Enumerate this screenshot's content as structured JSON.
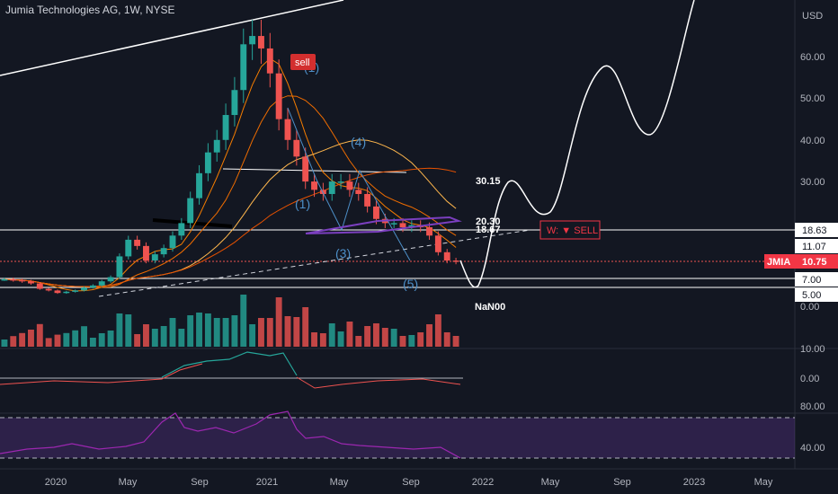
{
  "header": {
    "title": "Jumia Technologies AG, 1W, NYSE"
  },
  "price_axis": {
    "currency": "USD",
    "labels": [
      "60.00",
      "50.00",
      "40.00",
      "30.00",
      "0.00"
    ],
    "boxes": [
      {
        "label": "18.63",
        "bg": "#ffffff",
        "fg": "#131722"
      },
      {
        "label": "11.07",
        "bg": "#ffffff",
        "fg": "#131722"
      },
      {
        "label": "7.00",
        "bg": "#ffffff",
        "fg": "#131722"
      },
      {
        "label": "5.00",
        "bg": "#ffffff",
        "fg": "#131722"
      }
    ],
    "ticker": {
      "symbol": "JMIA",
      "price": "10.75",
      "color": "#f23645"
    },
    "volume_labels": [
      "10.00"
    ],
    "indicator1_labels": [
      "0.00"
    ],
    "indicator2_labels": [
      "80.00",
      "40.00"
    ]
  },
  "time_axis": [
    "2020",
    "May",
    "Sep",
    "2021",
    "May",
    "Sep",
    "2022",
    "May",
    "Sep",
    "2023",
    "May"
  ],
  "annotations": {
    "sell_tag": "sell",
    "waves": [
      "(1)",
      "(1)",
      "(3)",
      "(4)",
      "(5)"
    ],
    "levels": [
      "30.15",
      "20.30",
      "18.67"
    ],
    "nan_label": "NaN00",
    "signal": "W: ▼ SELL"
  },
  "colors": {
    "background": "#131722",
    "up": "#26a69a",
    "down": "#ef5350",
    "projection": "#ffffff",
    "wave_label": "#4d8fc8",
    "rsi": "#9c27b0",
    "signal_border": "#f23645"
  },
  "chart_data": {
    "type": "candlestick",
    "title": "Jumia Technologies AG, 1W, NYSE",
    "x_ticks": [
      "2020",
      "May",
      "Sep",
      "2021",
      "May",
      "Sep",
      "2022",
      "May",
      "Sep",
      "2023",
      "May"
    ],
    "y_ticks": [
      0,
      30,
      40,
      50,
      60
    ],
    "horizontal_levels": [
      18.63,
      11.07,
      10.75,
      7.0,
      5.0
    ],
    "annotated_levels": [
      30.15,
      20.3,
      18.67
    ],
    "last_price": 10.75,
    "series": [
      {
        "name": "JMIA",
        "close": [
          6.5,
          6.3,
          6.0,
          5.5,
          4.2,
          3.8,
          3.2,
          3.5,
          3.8,
          4.5,
          5.0,
          6.0,
          7.0,
          12.0,
          16.0,
          14.5,
          11.0,
          12.5,
          14.0,
          17.0,
          20.0,
          26.0,
          32.0,
          37.0,
          40.0,
          46.0,
          52.0,
          63.0,
          65.0,
          62.0,
          56.0,
          45.0,
          40.0,
          36.0,
          30.0,
          28.0,
          27.0,
          30.0,
          30.0,
          28.0,
          27.0,
          24.0,
          21.0,
          20.0,
          20.0,
          19.0,
          19.5,
          19.0,
          17.0,
          13.0,
          11.0,
          10.75
        ]
      },
      {
        "name": "projection",
        "values_ref": [
          10.75,
          3.5,
          19.0,
          28.0,
          22.0,
          21.0,
          40.0,
          56.0,
          52.0,
          42.0,
          52.0,
          68.0
        ]
      }
    ]
  }
}
